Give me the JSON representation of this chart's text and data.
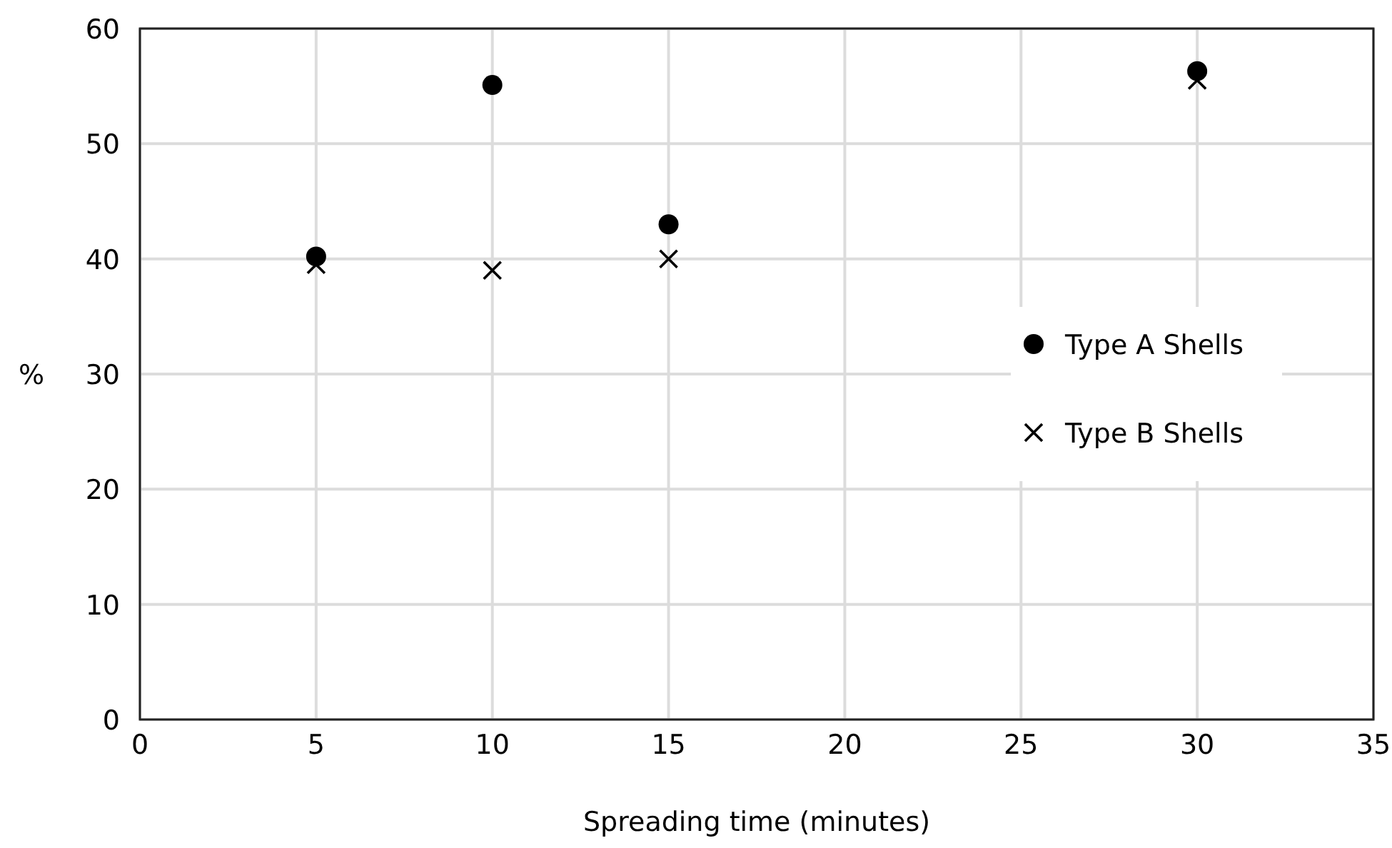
{
  "chart_data": {
    "type": "scatter",
    "xlabel": "Spreading time (minutes)",
    "ylabel": "%",
    "x": [
      5,
      10,
      15,
      30
    ],
    "series": [
      {
        "name": "Type A Shells",
        "color": "#000000",
        "marker": "circle",
        "values": [
          40.2,
          55.1,
          43,
          56.3
        ]
      },
      {
        "name": "Type B Shells",
        "color": "#000000",
        "marker": "cross",
        "values": [
          39.5,
          39,
          40,
          55.5
        ]
      }
    ],
    "xlim": [
      0,
      35
    ],
    "xticks": [
      0,
      5,
      10,
      15,
      20,
      25,
      30,
      35
    ],
    "ylim": [
      0,
      60
    ],
    "yticks": [
      0,
      10,
      20,
      30,
      40,
      50,
      60
    ],
    "grid": true,
    "legend": "right"
  }
}
